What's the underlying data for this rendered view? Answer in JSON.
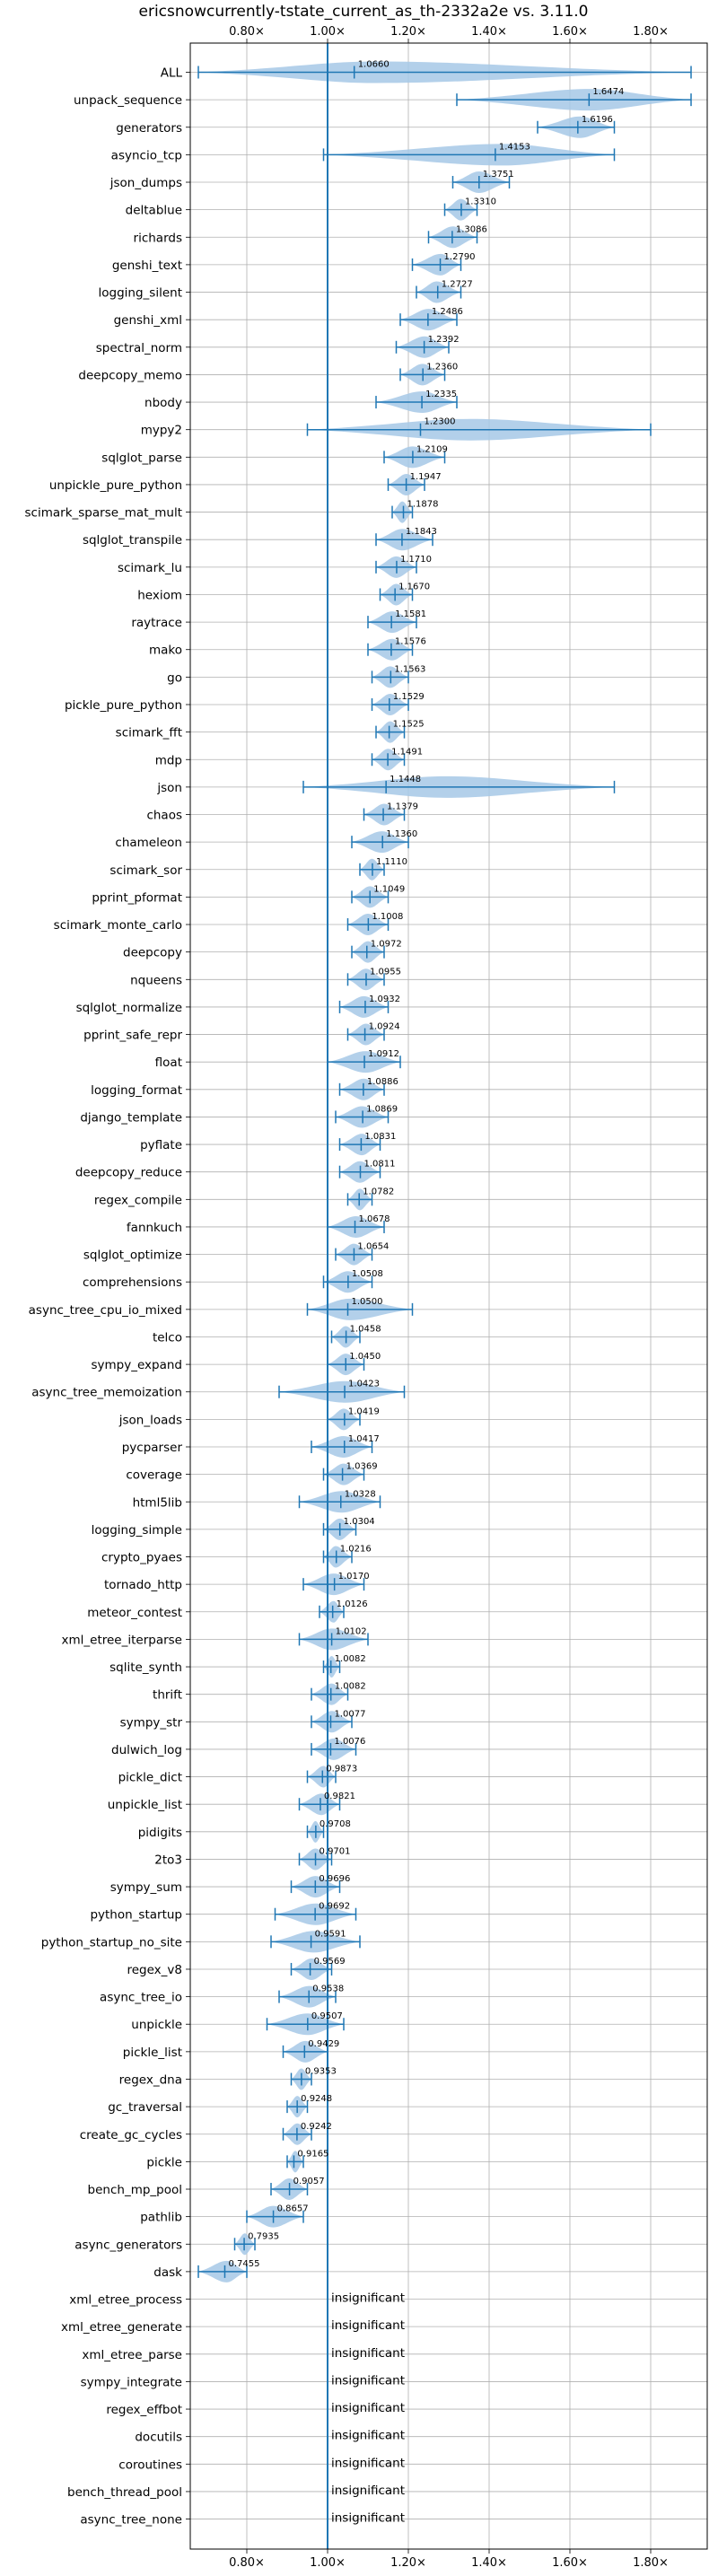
{
  "chart_data": {
    "type": "violin",
    "title": "ericsnowcurrently-tstate_current_as_th-2332a2e vs. 3.11.0",
    "xlabel": "",
    "ylabel": "",
    "xlim": [
      0.66,
      1.94
    ],
    "xticks": [
      0.8,
      1.0,
      1.2,
      1.4,
      1.6,
      1.8
    ],
    "xtick_labels": [
      "0.80×",
      "1.00×",
      "1.20×",
      "1.40×",
      "1.60×",
      "1.80×"
    ],
    "grid": true,
    "reference_line": 1.0,
    "colors": {
      "violin": "#a6c8e6",
      "line": "#1f77b4",
      "grid": "#b0b0b0"
    },
    "insignificant_text": "insignificant",
    "benchmarks": [
      {
        "name": "ALL",
        "value": "1.0660",
        "mean": 1.066,
        "min": 0.68,
        "max": 1.9,
        "q1": 0.99,
        "q3": 1.25
      },
      {
        "name": "unpack_sequence",
        "value": "1.6474",
        "mean": 1.6474,
        "min": 1.32,
        "max": 1.9,
        "q1": 1.5,
        "q3": 1.8
      },
      {
        "name": "generators",
        "value": "1.6196",
        "mean": 1.6196,
        "min": 1.52,
        "max": 1.71,
        "q1": 1.58,
        "q3": 1.67
      },
      {
        "name": "asyncio_tcp",
        "value": "1.4153",
        "mean": 1.4153,
        "min": 0.99,
        "max": 1.71,
        "q1": 1.27,
        "q3": 1.6
      },
      {
        "name": "json_dumps",
        "value": "1.3751",
        "mean": 1.3751,
        "min": 1.31,
        "max": 1.45,
        "q1": 1.35,
        "q3": 1.4
      },
      {
        "name": "deltablue",
        "value": "1.3310",
        "mean": 1.331,
        "min": 1.29,
        "max": 1.37,
        "q1": 1.31,
        "q3": 1.35
      },
      {
        "name": "richards",
        "value": "1.3086",
        "mean": 1.3086,
        "min": 1.25,
        "max": 1.37,
        "q1": 1.28,
        "q3": 1.34
      },
      {
        "name": "genshi_text",
        "value": "1.2790",
        "mean": 1.279,
        "min": 1.21,
        "max": 1.33,
        "q1": 1.25,
        "q3": 1.31
      },
      {
        "name": "logging_silent",
        "value": "1.2727",
        "mean": 1.2727,
        "min": 1.22,
        "max": 1.33,
        "q1": 1.24,
        "q3": 1.3
      },
      {
        "name": "genshi_xml",
        "value": "1.2486",
        "mean": 1.2486,
        "min": 1.18,
        "max": 1.32,
        "q1": 1.22,
        "q3": 1.28
      },
      {
        "name": "spectral_norm",
        "value": "1.2392",
        "mean": 1.2392,
        "min": 1.17,
        "max": 1.3,
        "q1": 1.21,
        "q3": 1.27
      },
      {
        "name": "deepcopy_memo",
        "value": "1.2360",
        "mean": 1.236,
        "min": 1.18,
        "max": 1.29,
        "q1": 1.21,
        "q3": 1.26
      },
      {
        "name": "nbody",
        "value": "1.2335",
        "mean": 1.2335,
        "min": 1.12,
        "max": 1.32,
        "q1": 1.2,
        "q3": 1.27
      },
      {
        "name": "mypy2",
        "value": "1.2300",
        "mean": 1.23,
        "min": 0.95,
        "max": 1.8,
        "q1": 0.99,
        "q3": 1.72
      },
      {
        "name": "sqlglot_parse",
        "value": "1.2109",
        "mean": 1.2109,
        "min": 1.14,
        "max": 1.29,
        "q1": 1.18,
        "q3": 1.24
      },
      {
        "name": "unpickle_pure_python",
        "value": "1.1947",
        "mean": 1.1947,
        "min": 1.15,
        "max": 1.24,
        "q1": 1.17,
        "q3": 1.22
      },
      {
        "name": "scimark_sparse_mat_mult",
        "value": "1.1878",
        "mean": 1.1878,
        "min": 1.16,
        "max": 1.21,
        "q1": 1.17,
        "q3": 1.2
      },
      {
        "name": "sqlglot_transpile",
        "value": "1.1843",
        "mean": 1.1843,
        "min": 1.12,
        "max": 1.26,
        "q1": 1.15,
        "q3": 1.22
      },
      {
        "name": "scimark_lu",
        "value": "1.1710",
        "mean": 1.171,
        "min": 1.12,
        "max": 1.22,
        "q1": 1.15,
        "q3": 1.19
      },
      {
        "name": "hexiom",
        "value": "1.1670",
        "mean": 1.167,
        "min": 1.13,
        "max": 1.21,
        "q1": 1.15,
        "q3": 1.19
      },
      {
        "name": "raytrace",
        "value": "1.1581",
        "mean": 1.1581,
        "min": 1.1,
        "max": 1.22,
        "q1": 1.13,
        "q3": 1.19
      },
      {
        "name": "mako",
        "value": "1.1576",
        "mean": 1.1576,
        "min": 1.1,
        "max": 1.21,
        "q1": 1.13,
        "q3": 1.19
      },
      {
        "name": "go",
        "value": "1.1563",
        "mean": 1.1563,
        "min": 1.11,
        "max": 1.2,
        "q1": 1.13,
        "q3": 1.18
      },
      {
        "name": "pickle_pure_python",
        "value": "1.1529",
        "mean": 1.1529,
        "min": 1.11,
        "max": 1.2,
        "q1": 1.13,
        "q3": 1.18
      },
      {
        "name": "scimark_fft",
        "value": "1.1525",
        "mean": 1.1525,
        "min": 1.12,
        "max": 1.19,
        "q1": 1.14,
        "q3": 1.17
      },
      {
        "name": "mdp",
        "value": "1.1491",
        "mean": 1.1491,
        "min": 1.11,
        "max": 1.19,
        "q1": 1.13,
        "q3": 1.17
      },
      {
        "name": "json",
        "value": "1.1448",
        "mean": 1.1448,
        "min": 0.94,
        "max": 1.71,
        "q1": 0.99,
        "q3": 1.6
      },
      {
        "name": "chaos",
        "value": "1.1379",
        "mean": 1.1379,
        "min": 1.09,
        "max": 1.19,
        "q1": 1.11,
        "q3": 1.17
      },
      {
        "name": "chameleon",
        "value": "1.1360",
        "mean": 1.136,
        "min": 1.06,
        "max": 1.2,
        "q1": 1.1,
        "q3": 1.17
      },
      {
        "name": "scimark_sor",
        "value": "1.1110",
        "mean": 1.111,
        "min": 1.08,
        "max": 1.14,
        "q1": 1.09,
        "q3": 1.13
      },
      {
        "name": "pprint_pformat",
        "value": "1.1049",
        "mean": 1.1049,
        "min": 1.06,
        "max": 1.15,
        "q1": 1.08,
        "q3": 1.13
      },
      {
        "name": "scimark_monte_carlo",
        "value": "1.1008",
        "mean": 1.1008,
        "min": 1.05,
        "max": 1.15,
        "q1": 1.07,
        "q3": 1.13
      },
      {
        "name": "deepcopy",
        "value": "1.0972",
        "mean": 1.0972,
        "min": 1.06,
        "max": 1.14,
        "q1": 1.08,
        "q3": 1.12
      },
      {
        "name": "nqueens",
        "value": "1.0955",
        "mean": 1.0955,
        "min": 1.05,
        "max": 1.14,
        "q1": 1.07,
        "q3": 1.12
      },
      {
        "name": "sqlglot_normalize",
        "value": "1.0932",
        "mean": 1.0932,
        "min": 1.03,
        "max": 1.15,
        "q1": 1.06,
        "q3": 1.12
      },
      {
        "name": "pprint_safe_repr",
        "value": "1.0924",
        "mean": 1.0924,
        "min": 1.05,
        "max": 1.14,
        "q1": 1.07,
        "q3": 1.12
      },
      {
        "name": "float",
        "value": "1.0912",
        "mean": 1.0912,
        "min": 1.0,
        "max": 1.18,
        "q1": 1.05,
        "q3": 1.14
      },
      {
        "name": "logging_format",
        "value": "1.0886",
        "mean": 1.0886,
        "min": 1.03,
        "max": 1.14,
        "q1": 1.06,
        "q3": 1.12
      },
      {
        "name": "django_template",
        "value": "1.0869",
        "mean": 1.0869,
        "min": 1.02,
        "max": 1.15,
        "q1": 1.05,
        "q3": 1.12
      },
      {
        "name": "pyflate",
        "value": "1.0831",
        "mean": 1.0831,
        "min": 1.03,
        "max": 1.13,
        "q1": 1.06,
        "q3": 1.11
      },
      {
        "name": "deepcopy_reduce",
        "value": "1.0811",
        "mean": 1.0811,
        "min": 1.03,
        "max": 1.13,
        "q1": 1.05,
        "q3": 1.11
      },
      {
        "name": "regex_compile",
        "value": "1.0782",
        "mean": 1.0782,
        "min": 1.05,
        "max": 1.11,
        "q1": 1.06,
        "q3": 1.1
      },
      {
        "name": "fannkuch",
        "value": "1.0678",
        "mean": 1.0678,
        "min": 1.0,
        "max": 1.14,
        "q1": 1.03,
        "q3": 1.11
      },
      {
        "name": "sqlglot_optimize",
        "value": "1.0654",
        "mean": 1.0654,
        "min": 1.02,
        "max": 1.11,
        "q1": 1.04,
        "q3": 1.09
      },
      {
        "name": "comprehensions",
        "value": "1.0508",
        "mean": 1.0508,
        "min": 0.99,
        "max": 1.11,
        "q1": 1.02,
        "q3": 1.08
      },
      {
        "name": "async_tree_cpu_io_mixed",
        "value": "1.0500",
        "mean": 1.05,
        "min": 0.95,
        "max": 1.21,
        "q1": 0.99,
        "q3": 1.12
      },
      {
        "name": "telco",
        "value": "1.0458",
        "mean": 1.0458,
        "min": 1.01,
        "max": 1.08,
        "q1": 1.03,
        "q3": 1.06
      },
      {
        "name": "sympy_expand",
        "value": "1.0450",
        "mean": 1.045,
        "min": 1.0,
        "max": 1.09,
        "q1": 1.02,
        "q3": 1.07
      },
      {
        "name": "async_tree_memoization",
        "value": "1.0423",
        "mean": 1.0423,
        "min": 0.88,
        "max": 1.19,
        "q1": 0.97,
        "q3": 1.12
      },
      {
        "name": "json_loads",
        "value": "1.0419",
        "mean": 1.0419,
        "min": 1.0,
        "max": 1.08,
        "q1": 1.02,
        "q3": 1.06
      },
      {
        "name": "pycparser",
        "value": "1.0417",
        "mean": 1.0417,
        "min": 0.96,
        "max": 1.11,
        "q1": 1.0,
        "q3": 1.08
      },
      {
        "name": "coverage",
        "value": "1.0369",
        "mean": 1.0369,
        "min": 0.99,
        "max": 1.09,
        "q1": 1.01,
        "q3": 1.07
      },
      {
        "name": "html5lib",
        "value": "1.0328",
        "mean": 1.0328,
        "min": 0.93,
        "max": 1.13,
        "q1": 0.98,
        "q3": 1.09
      },
      {
        "name": "logging_simple",
        "value": "1.0304",
        "mean": 1.0304,
        "min": 0.99,
        "max": 1.07,
        "q1": 1.01,
        "q3": 1.05
      },
      {
        "name": "crypto_pyaes",
        "value": "1.0216",
        "mean": 1.0216,
        "min": 0.99,
        "max": 1.06,
        "q1": 1.0,
        "q3": 1.04
      },
      {
        "name": "tornado_http",
        "value": "1.0170",
        "mean": 1.017,
        "min": 0.94,
        "max": 1.09,
        "q1": 0.98,
        "q3": 1.05
      },
      {
        "name": "meteor_contest",
        "value": "1.0126",
        "mean": 1.0126,
        "min": 0.98,
        "max": 1.04,
        "q1": 1.0,
        "q3": 1.03
      },
      {
        "name": "xml_etree_iterparse",
        "value": "1.0102",
        "mean": 1.0102,
        "min": 0.93,
        "max": 1.1,
        "q1": 0.97,
        "q3": 1.05
      },
      {
        "name": "sqlite_synth",
        "value": "1.0082",
        "mean": 1.0082,
        "min": 0.99,
        "max": 1.03,
        "q1": 1.0,
        "q3": 1.02
      },
      {
        "name": "thrift",
        "value": "1.0082",
        "mean": 1.0082,
        "min": 0.96,
        "max": 1.05,
        "q1": 0.99,
        "q3": 1.03
      },
      {
        "name": "sympy_str",
        "value": "1.0077",
        "mean": 1.0077,
        "min": 0.96,
        "max": 1.06,
        "q1": 0.99,
        "q3": 1.03
      },
      {
        "name": "dulwich_log",
        "value": "1.0076",
        "mean": 1.0076,
        "min": 0.96,
        "max": 1.07,
        "q1": 0.99,
        "q3": 1.04
      },
      {
        "name": "pickle_dict",
        "value": "0.9873",
        "mean": 0.9873,
        "min": 0.95,
        "max": 1.02,
        "q1": 0.97,
        "q3": 1.01
      },
      {
        "name": "unpickle_list",
        "value": "0.9821",
        "mean": 0.9821,
        "min": 0.93,
        "max": 1.03,
        "q1": 0.96,
        "q3": 1.01
      },
      {
        "name": "pidigits",
        "value": "0.9708",
        "mean": 0.9708,
        "min": 0.95,
        "max": 0.99,
        "q1": 0.96,
        "q3": 0.98
      },
      {
        "name": "2to3",
        "value": "0.9701",
        "mean": 0.9701,
        "min": 0.93,
        "max": 1.01,
        "q1": 0.95,
        "q3": 0.99
      },
      {
        "name": "sympy_sum",
        "value": "0.9696",
        "mean": 0.9696,
        "min": 0.91,
        "max": 1.03,
        "q1": 0.94,
        "q3": 1.0
      },
      {
        "name": "python_startup",
        "value": "0.9692",
        "mean": 0.9692,
        "min": 0.87,
        "max": 1.07,
        "q1": 0.92,
        "q3": 1.02
      },
      {
        "name": "python_startup_no_site",
        "value": "0.9591",
        "mean": 0.9591,
        "min": 0.86,
        "max": 1.08,
        "q1": 0.91,
        "q3": 1.02
      },
      {
        "name": "regex_v8",
        "value": "0.9569",
        "mean": 0.9569,
        "min": 0.91,
        "max": 1.01,
        "q1": 0.93,
        "q3": 0.99
      },
      {
        "name": "async_tree_io",
        "value": "0.9538",
        "mean": 0.9538,
        "min": 0.88,
        "max": 1.02,
        "q1": 0.92,
        "q3": 0.99
      },
      {
        "name": "unpickle",
        "value": "0.9507",
        "mean": 0.9507,
        "min": 0.85,
        "max": 1.04,
        "q1": 0.9,
        "q3": 1.0
      },
      {
        "name": "pickle_list",
        "value": "0.9429",
        "mean": 0.9429,
        "min": 0.89,
        "max": 1.0,
        "q1": 0.91,
        "q3": 0.98
      },
      {
        "name": "regex_dna",
        "value": "0.9353",
        "mean": 0.9353,
        "min": 0.91,
        "max": 0.96,
        "q1": 0.92,
        "q3": 0.95
      },
      {
        "name": "gc_traversal",
        "value": "0.9248",
        "mean": 0.9248,
        "min": 0.9,
        "max": 0.95,
        "q1": 0.91,
        "q3": 0.94
      },
      {
        "name": "create_gc_cycles",
        "value": "0.9242",
        "mean": 0.9242,
        "min": 0.89,
        "max": 0.96,
        "q1": 0.91,
        "q3": 0.94
      },
      {
        "name": "pickle",
        "value": "0.9165",
        "mean": 0.9165,
        "min": 0.9,
        "max": 0.94,
        "q1": 0.91,
        "q3": 0.93
      },
      {
        "name": "bench_mp_pool",
        "value": "0.9057",
        "mean": 0.9057,
        "min": 0.86,
        "max": 0.95,
        "q1": 0.88,
        "q3": 0.93
      },
      {
        "name": "pathlib",
        "value": "0.8657",
        "mean": 0.8657,
        "min": 0.8,
        "max": 0.94,
        "q1": 0.83,
        "q3": 0.9
      },
      {
        "name": "async_generators",
        "value": "0.7935",
        "mean": 0.7935,
        "min": 0.77,
        "max": 0.82,
        "q1": 0.78,
        "q3": 0.81
      },
      {
        "name": "dask",
        "value": "0.7455",
        "mean": 0.7455,
        "min": 0.68,
        "max": 0.8,
        "q1": 0.72,
        "q3": 0.78
      },
      {
        "name": "xml_etree_process",
        "value": "",
        "insignificant": true
      },
      {
        "name": "xml_etree_generate",
        "value": "",
        "insignificant": true
      },
      {
        "name": "xml_etree_parse",
        "value": "",
        "insignificant": true
      },
      {
        "name": "sympy_integrate",
        "value": "",
        "insignificant": true
      },
      {
        "name": "regex_effbot",
        "value": "",
        "insignificant": true
      },
      {
        "name": "docutils",
        "value": "",
        "insignificant": true
      },
      {
        "name": "coroutines",
        "value": "",
        "insignificant": true
      },
      {
        "name": "bench_thread_pool",
        "value": "",
        "insignificant": true
      },
      {
        "name": "async_tree_none",
        "value": "",
        "insignificant": true
      }
    ]
  }
}
